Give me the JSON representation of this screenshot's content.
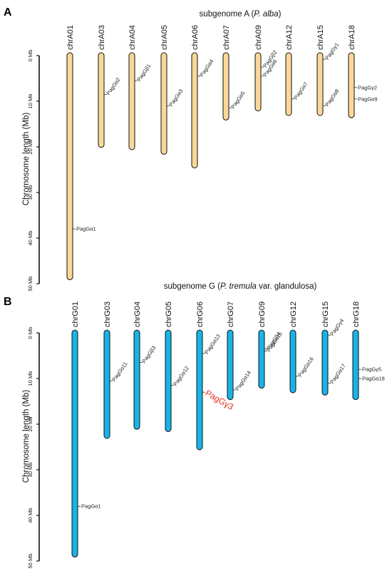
{
  "panels": [
    {
      "id": "A",
      "letter": "A",
      "title": "subgenome A (P. alba)",
      "title_pre": "subgenome A (",
      "title_it": "P. alba",
      "title_post": ")",
      "y_label": "Chromosome length (Mb)",
      "color": "#f9d89a",
      "ticks": [
        {
          "value": 0,
          "label": "0 Mb"
        },
        {
          "value": 10,
          "label": "10 Mb"
        },
        {
          "value": 20,
          "label": "20 Mb"
        },
        {
          "value": 30,
          "label": "30 Mb"
        },
        {
          "value": 40,
          "label": "40 Mb"
        },
        {
          "value": 50,
          "label": "50 Mb"
        }
      ],
      "chromosomes": [
        {
          "name": "chrA01",
          "length": 48.5,
          "genes": [
            {
              "label": "PagGα1",
              "pos": 38
            }
          ]
        },
        {
          "name": "chrA03",
          "length": 19.5,
          "genes": [
            {
              "label": "PagGα2",
              "pos": 8.5,
              "rot": true
            }
          ]
        },
        {
          "name": "chrA04",
          "length": 20,
          "genes": [
            {
              "label": "PagGβ1",
              "pos": 5.5,
              "rot": true
            }
          ]
        },
        {
          "name": "chrA05",
          "length": 21,
          "genes": [
            {
              "label": "PagGα3",
              "pos": 11,
              "rot": true
            }
          ]
        },
        {
          "name": "chrA06",
          "length": 24,
          "genes": [
            {
              "label": "PagGα4",
              "pos": 4.5,
              "rot": true
            }
          ]
        },
        {
          "name": "chrA07",
          "length": 13.5,
          "genes": [
            {
              "label": "PagGα5",
              "pos": 11.5,
              "rot": true
            }
          ]
        },
        {
          "name": "chrA09",
          "length": 11.5,
          "genes": [
            {
              "label": "PagGβ2",
              "pos": 2.5,
              "rot": true
            },
            {
              "label": "PagGα6",
              "pos": 4.5,
              "rot": true
            }
          ]
        },
        {
          "name": "chrA12",
          "length": 12.5,
          "genes": [
            {
              "label": "PagGα7",
              "pos": 9.5,
              "rot": true
            }
          ]
        },
        {
          "name": "chrA15",
          "length": 12.5,
          "genes": [
            {
              "label": "PagGγ1",
              "pos": 0.8,
              "rot": true
            },
            {
              "label": "PagGα8",
              "pos": 11,
              "rot": true
            }
          ]
        },
        {
          "name": "chrA18",
          "length": 13,
          "genes": [
            {
              "label": "PagGγ2",
              "pos": 7
            },
            {
              "label": "PagGα9",
              "pos": 9.5
            }
          ]
        }
      ]
    },
    {
      "id": "G",
      "letter": "B",
      "title": "subgenome G (P. tremula var. glandulosa)",
      "title_pre": "subgenome G (",
      "title_it": "P. tremula",
      "title_post": " var. glandulosa)",
      "y_label": "Chromosome length (Mb)",
      "color": "#1ab3e6",
      "ticks": [
        {
          "value": 0,
          "label": "0 Mb"
        },
        {
          "value": 10,
          "label": "10 Mb"
        },
        {
          "value": 20,
          "label": "20 Mb"
        },
        {
          "value": 30,
          "label": "30 Mb"
        },
        {
          "value": 40,
          "label": "40 Mb"
        },
        {
          "value": 50,
          "label": "50 Mb"
        }
      ],
      "chromosomes": [
        {
          "name": "chrG01",
          "length": 48.5,
          "genes": [
            {
              "label": "PagGα1",
              "pos": 38
            }
          ]
        },
        {
          "name": "chrG03",
          "length": 22.5,
          "genes": [
            {
              "label": "PagGα11",
              "pos": 10.5,
              "rot": true
            }
          ]
        },
        {
          "name": "chrG04",
          "length": 20.5,
          "genes": [
            {
              "label": "PagGβ3",
              "pos": 6.5,
              "rot": true
            }
          ]
        },
        {
          "name": "chrG05",
          "length": 21,
          "genes": [
            {
              "label": "PagGα12",
              "pos": 11.5,
              "rot": true
            }
          ]
        },
        {
          "name": "chrG06",
          "length": 25,
          "genes": [
            {
              "label": "PagGα13",
              "pos": 4.5,
              "rot": true
            },
            {
              "label": "PagGγ3",
              "pos": 13,
              "rot": true,
              "highlight": true
            }
          ]
        },
        {
          "name": "chrG07",
          "length": 14,
          "genes": [
            {
              "label": "PagGα14",
              "pos": 12.5,
              "rot": true
            }
          ]
        },
        {
          "name": "chrG09",
          "length": 11.5,
          "genes": [
            {
              "label": "PagGβ4",
              "pos": 3.5,
              "rot": true
            },
            {
              "label": "PagGα15",
              "pos": 4,
              "rot": true
            }
          ]
        },
        {
          "name": "chrG12",
          "length": 12.5,
          "genes": [
            {
              "label": "PagGα16",
              "pos": 9.5,
              "rot": true
            }
          ]
        },
        {
          "name": "chrG15",
          "length": 13,
          "genes": [
            {
              "label": "PagGγ4",
              "pos": 0.5,
              "rot": true
            },
            {
              "label": "PagGα17",
              "pos": 11,
              "rot": true
            }
          ]
        },
        {
          "name": "chrG18",
          "length": 14,
          "genes": [
            {
              "label": "PagGγ5",
              "pos": 8
            },
            {
              "label": "PagGα18",
              "pos": 10
            }
          ]
        }
      ]
    }
  ]
}
